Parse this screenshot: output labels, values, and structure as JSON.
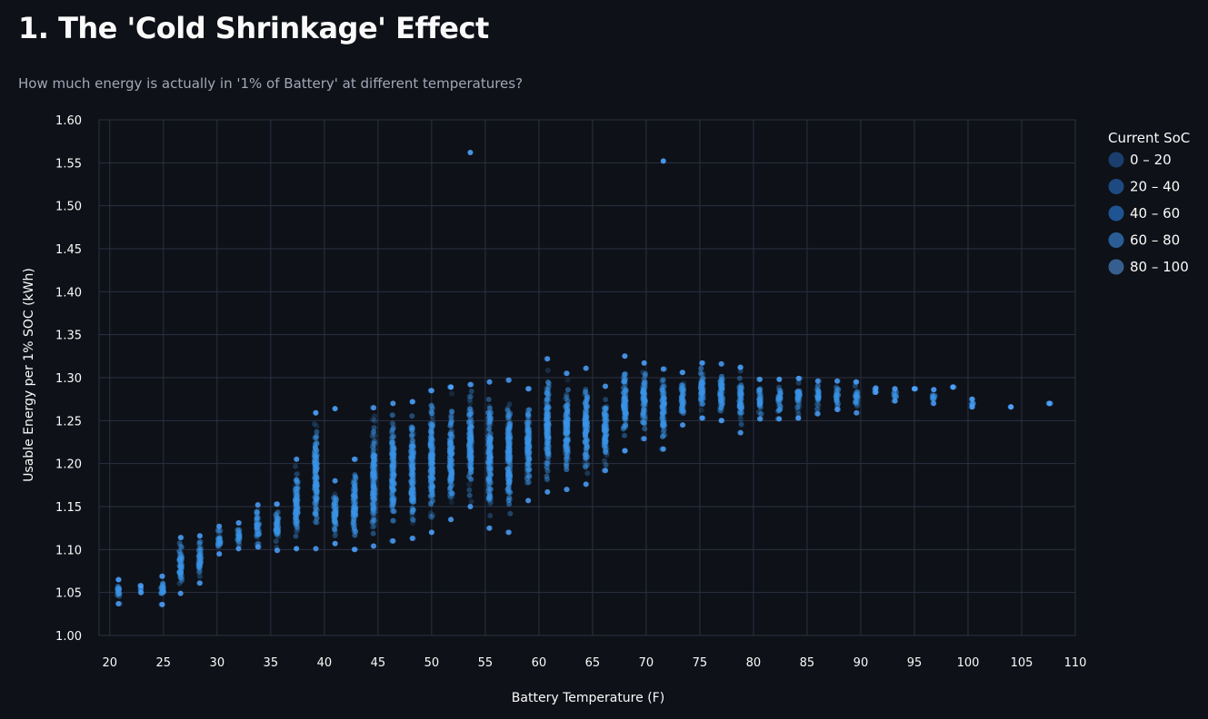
{
  "page": {
    "title": "1. The 'Cold Shrinkage' Effect",
    "subtitle": "How much energy is actually in '1% of Battery' at different temperatures?"
  },
  "colors": {
    "background": "#0e1117",
    "grid": "#2b3142",
    "point": "#3a93e6",
    "point_bright": "#4da3ff"
  },
  "chart_data": {
    "type": "scatter",
    "title": "",
    "xlabel": "Battery Temperature (F)",
    "ylabel": "Usable Energy per 1% SOC (kWh)",
    "xlim": [
      19,
      110
    ],
    "ylim": [
      1.0,
      1.6
    ],
    "x_ticks": [
      20,
      25,
      30,
      35,
      40,
      45,
      50,
      55,
      60,
      65,
      70,
      75,
      80,
      85,
      90,
      95,
      100,
      105,
      110
    ],
    "y_ticks": [
      1.0,
      1.05,
      1.1,
      1.15,
      1.2,
      1.25,
      1.3,
      1.35,
      1.4,
      1.45,
      1.5,
      1.55,
      1.6
    ],
    "x_tick_labels": [
      "20",
      "25",
      "30",
      "35",
      "40",
      "45",
      "50",
      "55",
      "60",
      "65",
      "70",
      "75",
      "80",
      "85",
      "90",
      "95",
      "100",
      "105",
      "110"
    ],
    "y_tick_labels": [
      "1.00",
      "1.05",
      "1.10",
      "1.15",
      "1.20",
      "1.25",
      "1.30",
      "1.35",
      "1.40",
      "1.45",
      "1.50",
      "1.55",
      "1.60"
    ],
    "grid": true,
    "legend": {
      "title": "Current SoC",
      "placement": "right",
      "entries": [
        "0 – 20",
        "20 – 40",
        "40 – 60",
        "60 – 80",
        "80 – 100"
      ],
      "colors": [
        "#1a3f6e",
        "#1d4a80",
        "#1f5492",
        "#2a5d95",
        "#355f8f"
      ]
    },
    "series": [
      {
        "name": "columns",
        "columns": [
          {
            "x": 20.8,
            "ymin": 1.037,
            "ymax": 1.065
          },
          {
            "x": 22.9,
            "ymin": 1.05,
            "ymax": 1.058
          },
          {
            "x": 24.9,
            "ymin": 1.036,
            "ymax": 1.069
          },
          {
            "x": 26.6,
            "ymin": 1.049,
            "ymax": 1.114
          },
          {
            "x": 28.4,
            "ymin": 1.061,
            "ymax": 1.116
          },
          {
            "x": 30.2,
            "ymin": 1.095,
            "ymax": 1.127
          },
          {
            "x": 32.0,
            "ymin": 1.101,
            "ymax": 1.131
          },
          {
            "x": 33.8,
            "ymin": 1.103,
            "ymax": 1.152
          },
          {
            "x": 35.6,
            "ymin": 1.099,
            "ymax": 1.153
          },
          {
            "x": 37.4,
            "ymin": 1.101,
            "ymax": 1.205
          },
          {
            "x": 39.2,
            "ymin": 1.101,
            "ymax": 1.259
          },
          {
            "x": 41.0,
            "ymin": 1.107,
            "ymax": 1.18
          },
          {
            "x": 42.8,
            "ymin": 1.1,
            "ymax": 1.205
          },
          {
            "x": 44.6,
            "ymin": 1.104,
            "ymax": 1.265
          },
          {
            "x": 46.4,
            "ymin": 1.11,
            "ymax": 1.27
          },
          {
            "x": 48.2,
            "ymin": 1.113,
            "ymax": 1.272
          },
          {
            "x": 50.0,
            "ymin": 1.12,
            "ymax": 1.285
          },
          {
            "x": 51.8,
            "ymin": 1.135,
            "ymax": 1.289
          },
          {
            "x": 53.6,
            "ymin": 1.15,
            "ymax": 1.292
          },
          {
            "x": 55.4,
            "ymin": 1.125,
            "ymax": 1.295
          },
          {
            "x": 57.2,
            "ymin": 1.12,
            "ymax": 1.297
          },
          {
            "x": 59.0,
            "ymin": 1.157,
            "ymax": 1.287
          },
          {
            "x": 60.8,
            "ymin": 1.167,
            "ymax": 1.322
          },
          {
            "x": 62.6,
            "ymin": 1.17,
            "ymax": 1.305
          },
          {
            "x": 64.4,
            "ymin": 1.176,
            "ymax": 1.311
          },
          {
            "x": 66.2,
            "ymin": 1.192,
            "ymax": 1.29
          },
          {
            "x": 68.0,
            "ymin": 1.215,
            "ymax": 1.325
          },
          {
            "x": 69.8,
            "ymin": 1.229,
            "ymax": 1.317
          },
          {
            "x": 71.6,
            "ymin": 1.217,
            "ymax": 1.31
          },
          {
            "x": 73.4,
            "ymin": 1.245,
            "ymax": 1.306
          },
          {
            "x": 75.2,
            "ymin": 1.253,
            "ymax": 1.317
          },
          {
            "x": 77.0,
            "ymin": 1.25,
            "ymax": 1.316
          },
          {
            "x": 78.8,
            "ymin": 1.236,
            "ymax": 1.312
          },
          {
            "x": 80.6,
            "ymin": 1.252,
            "ymax": 1.298
          },
          {
            "x": 82.4,
            "ymin": 1.252,
            "ymax": 1.298
          },
          {
            "x": 84.2,
            "ymin": 1.253,
            "ymax": 1.299
          },
          {
            "x": 86.0,
            "ymin": 1.258,
            "ymax": 1.296
          },
          {
            "x": 87.8,
            "ymin": 1.263,
            "ymax": 1.296
          },
          {
            "x": 89.6,
            "ymin": 1.259,
            "ymax": 1.295
          },
          {
            "x": 91.4,
            "ymin": 1.283,
            "ymax": 1.288
          },
          {
            "x": 93.2,
            "ymin": 1.273,
            "ymax": 1.287
          },
          {
            "x": 95.0,
            "ymin": 1.287,
            "ymax": 1.287
          },
          {
            "x": 96.8,
            "ymin": 1.27,
            "ymax": 1.286
          },
          {
            "x": 98.6,
            "ymin": 1.289,
            "ymax": 1.289
          },
          {
            "x": 100.4,
            "ymin": 1.266,
            "ymax": 1.275
          },
          {
            "x": 104.0,
            "ymin": 1.266,
            "ymax": 1.266
          },
          {
            "x": 107.6,
            "ymin": 1.27,
            "ymax": 1.27
          }
        ]
      },
      {
        "name": "outliers",
        "points": [
          {
            "x": 53.6,
            "y": 1.562
          },
          {
            "x": 71.6,
            "y": 1.552
          },
          {
            "x": 41.0,
            "y": 1.264
          },
          {
            "x": 51.8,
            "y": 1.289
          }
        ]
      }
    ]
  }
}
